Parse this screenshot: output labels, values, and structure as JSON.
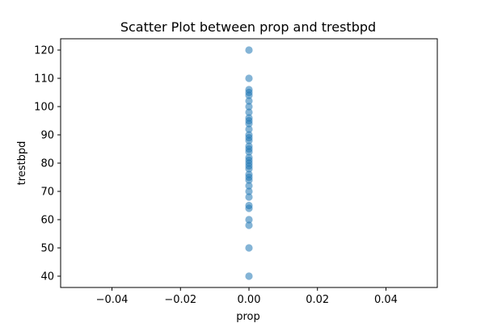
{
  "chart_data": {
    "type": "scatter",
    "title": "Scatter Plot between prop and trestbpd",
    "xlabel": "prop",
    "ylabel": "trestbpd",
    "xlim": [
      -0.055,
      0.055
    ],
    "ylim": [
      36,
      124
    ],
    "x_ticks": [
      -0.04,
      -0.02,
      0.0,
      0.02,
      0.04
    ],
    "x_tick_labels": [
      "−0.04",
      "−0.02",
      "0.00",
      "0.02",
      "0.04"
    ],
    "y_ticks": [
      40,
      50,
      60,
      70,
      80,
      90,
      100,
      110,
      120
    ],
    "y_tick_labels": [
      "40",
      "50",
      "60",
      "70",
      "80",
      "90",
      "100",
      "110",
      "120"
    ],
    "grid": false,
    "marker_color": "#1f77b4",
    "marker_alpha": 0.55,
    "points": [
      {
        "x": 0,
        "y": 40
      },
      {
        "x": 0,
        "y": 50
      },
      {
        "x": 0,
        "y": 58
      },
      {
        "x": 0,
        "y": 60
      },
      {
        "x": 0,
        "y": 64
      },
      {
        "x": 0,
        "y": 65
      },
      {
        "x": 0,
        "y": 68
      },
      {
        "x": 0,
        "y": 70
      },
      {
        "x": 0,
        "y": 72
      },
      {
        "x": 0,
        "y": 74
      },
      {
        "x": 0,
        "y": 75
      },
      {
        "x": 0,
        "y": 76
      },
      {
        "x": 0,
        "y": 78
      },
      {
        "x": 0,
        "y": 79
      },
      {
        "x": 0,
        "y": 80
      },
      {
        "x": 0,
        "y": 81
      },
      {
        "x": 0,
        "y": 82
      },
      {
        "x": 0,
        "y": 84
      },
      {
        "x": 0,
        "y": 85
      },
      {
        "x": 0,
        "y": 86
      },
      {
        "x": 0,
        "y": 88
      },
      {
        "x": 0,
        "y": 89
      },
      {
        "x": 0,
        "y": 90
      },
      {
        "x": 0,
        "y": 92
      },
      {
        "x": 0,
        "y": 94
      },
      {
        "x": 0,
        "y": 95
      },
      {
        "x": 0,
        "y": 96
      },
      {
        "x": 0,
        "y": 98
      },
      {
        "x": 0,
        "y": 100
      },
      {
        "x": 0,
        "y": 102
      },
      {
        "x": 0,
        "y": 104
      },
      {
        "x": 0,
        "y": 105
      },
      {
        "x": 0,
        "y": 106
      },
      {
        "x": 0,
        "y": 110
      },
      {
        "x": 0,
        "y": 120
      }
    ]
  }
}
